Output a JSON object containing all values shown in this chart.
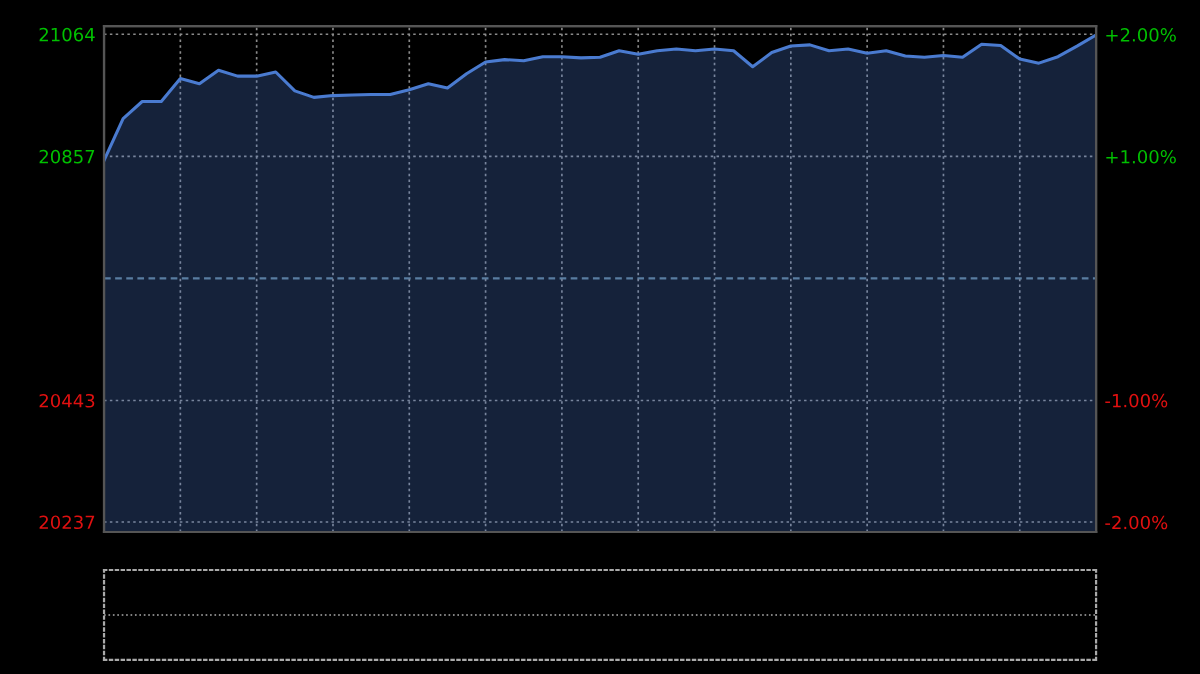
{
  "chart_data": {
    "type": "area",
    "categories": [
      null,
      null,
      null,
      null,
      null,
      null,
      null,
      null,
      null,
      null,
      null,
      null,
      null,
      null,
      null,
      null,
      null,
      null,
      null,
      null,
      null,
      null,
      null,
      null,
      null,
      null,
      null,
      null,
      null,
      null,
      null,
      null,
      null,
      null,
      null,
      null,
      null,
      null,
      null,
      null,
      null,
      null,
      null,
      null,
      null,
      null,
      null,
      null,
      null,
      null,
      null,
      null,
      null
    ],
    "series": [
      {
        "color": "#4a7bd0",
        "values": [
          20850,
          20921,
          20950,
          20950,
          20989,
          20980,
          21003,
          20993,
          20993,
          21000,
          20968,
          20957,
          20960,
          20961,
          20962,
          20962,
          20970,
          20980,
          20973,
          20997,
          21017,
          21021,
          21019,
          21026,
          21026,
          21024,
          21025,
          21036,
          21030,
          21036,
          21039,
          21036,
          21039,
          21036,
          21009,
          21033,
          21044,
          21046,
          21036,
          21039,
          21032,
          21036,
          21027,
          21025,
          21028,
          21025,
          21047,
          21045,
          21022,
          21015,
          21026,
          21044,
          21063
        ]
      }
    ],
    "ylim": [
      20220,
      21078
    ],
    "yticks": [
      20237,
      20443,
      20857,
      21064
    ],
    "y2lim": [
      -2.08,
      2.07
    ],
    "y2ticks": [
      {
        "value": -2,
        "label": "-2.00%"
      },
      {
        "value": -1,
        "label": "-1.00%"
      },
      {
        "value": 1,
        "label": "+1.00%"
      },
      {
        "value": 2,
        "label": "+2.00%"
      }
    ],
    "ref_lines": [
      {
        "axis": "y",
        "value": 20650,
        "color": "#5f7f8f",
        "line_style": "dashed"
      }
    ],
    "grid": true
  }
}
